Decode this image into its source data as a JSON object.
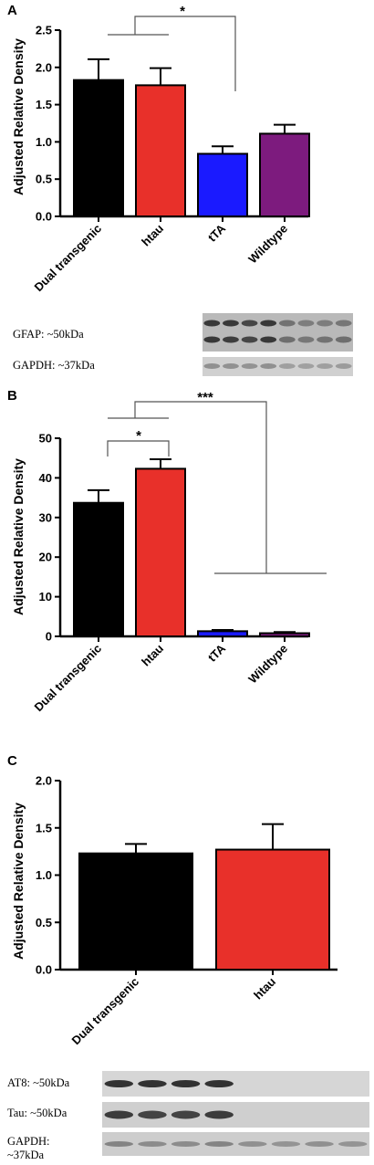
{
  "chart_data": [
    {
      "panel": "A",
      "type": "bar",
      "categories": [
        "Dual transgenic",
        "htau",
        "tTA",
        "Wildtype"
      ],
      "values": [
        1.83,
        1.76,
        0.84,
        1.11
      ],
      "errors": [
        0.28,
        0.23,
        0.1,
        0.12
      ],
      "colors": [
        "#000000",
        "#e8302a",
        "#1a1aff",
        "#7d1b7e"
      ],
      "ylabel": "Adjusted Relative Density",
      "ylim": [
        0,
        2.5
      ],
      "yticks": [
        "0.0",
        "0.5",
        "1.0",
        "1.5",
        "2.0",
        "2.5"
      ],
      "significance": [
        {
          "label": "*"
        }
      ],
      "blot_labels": [
        "GFAP: ~50kDa",
        "GAPDH: ~37kDa"
      ]
    },
    {
      "panel": "B",
      "type": "bar",
      "categories": [
        "Dual transgenic",
        "htau",
        "tTA",
        "Wildtype"
      ],
      "values": [
        33.7,
        42.3,
        1.3,
        0.8
      ],
      "errors": [
        3.2,
        2.4,
        0.3,
        0.3
      ],
      "colors": [
        "#000000",
        "#e8302a",
        "#1a1aff",
        "#7d1b7e"
      ],
      "ylabel": "Adjusted Relative Density",
      "ylim": [
        0,
        50
      ],
      "yticks": [
        "0",
        "10",
        "20",
        "30",
        "40",
        "50"
      ],
      "significance": [
        {
          "label": "*"
        },
        {
          "label": "***"
        }
      ]
    },
    {
      "panel": "C",
      "type": "bar",
      "categories": [
        "Dual transgenic",
        "htau"
      ],
      "values": [
        1.23,
        1.27
      ],
      "errors": [
        0.1,
        0.27
      ],
      "colors": [
        "#000000",
        "#e8302a"
      ],
      "ylabel": "Adjusted Relative Density",
      "ylim": [
        0,
        2.0
      ],
      "yticks": [
        "0.0",
        "0.5",
        "1.0",
        "1.5",
        "2.0"
      ],
      "blot_labels": [
        "AT8: ~50kDa",
        "Tau: ~50kDa",
        "GAPDH:",
        "~37kDa"
      ]
    }
  ]
}
